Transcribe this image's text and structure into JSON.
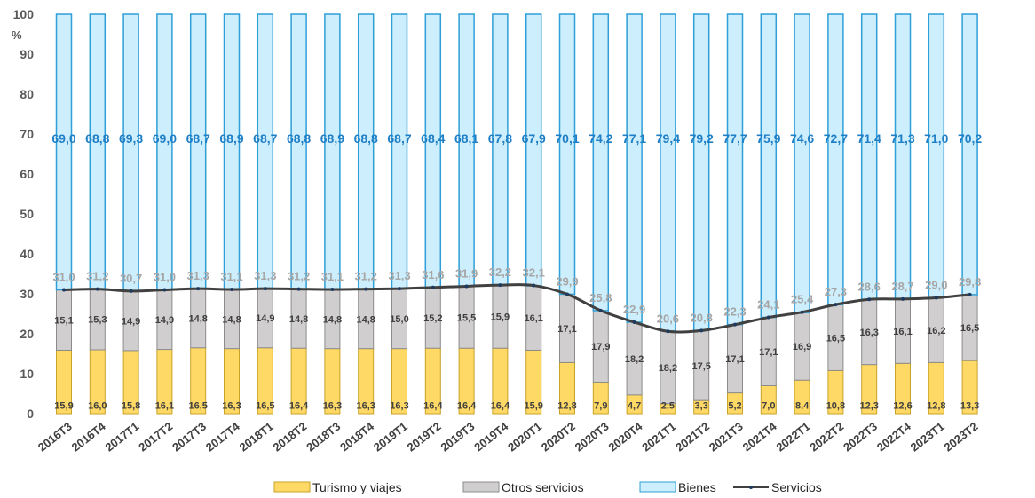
{
  "chart_data": {
    "type": "bar",
    "stacked": true,
    "unit_label": "%",
    "ylim": [
      0,
      100
    ],
    "yticks": [
      0,
      10,
      20,
      30,
      40,
      50,
      60,
      70,
      80,
      90,
      100
    ],
    "categories": [
      "2016T3",
      "2016T4",
      "2017T1",
      "2017T2",
      "2017T3",
      "2017T4",
      "2018T1",
      "2018T2",
      "2018T3",
      "2018T4",
      "2019T1",
      "2019T2",
      "2019T3",
      "2019T4",
      "2020T1",
      "2020T2",
      "2020T3",
      "2020T4",
      "2021T1",
      "2021T2",
      "2021T3",
      "2021T4",
      "2022T1",
      "2022T2",
      "2022T3",
      "2022T4",
      "2023T1",
      "2023T2"
    ],
    "series": [
      {
        "name": "Turismo y viajes",
        "kind": "bar",
        "color": "#ffd966",
        "values": [
          15.9,
          16.0,
          15.8,
          16.1,
          16.5,
          16.3,
          16.5,
          16.4,
          16.3,
          16.3,
          16.3,
          16.4,
          16.4,
          16.4,
          15.9,
          12.8,
          7.9,
          4.7,
          2.5,
          3.3,
          5.2,
          7.0,
          8.4,
          10.8,
          12.3,
          12.6,
          12.8,
          13.3
        ]
      },
      {
        "name": "Otros servicios",
        "kind": "bar",
        "color": "#d0cece",
        "values": [
          15.1,
          15.3,
          14.9,
          14.9,
          14.8,
          14.8,
          14.9,
          14.8,
          14.8,
          14.8,
          15.0,
          15.2,
          15.5,
          15.9,
          16.1,
          17.1,
          17.9,
          18.2,
          18.2,
          17.5,
          17.1,
          17.1,
          16.9,
          16.5,
          16.3,
          16.1,
          16.2,
          16.5
        ]
      },
      {
        "name": "Bienes",
        "kind": "bar",
        "color": "#cdeefc",
        "values": [
          69.0,
          68.8,
          69.3,
          69.0,
          68.7,
          68.9,
          68.7,
          68.8,
          68.9,
          68.8,
          68.7,
          68.4,
          68.1,
          67.8,
          67.9,
          70.1,
          74.2,
          77.1,
          79.4,
          79.2,
          77.7,
          75.9,
          74.6,
          72.7,
          71.4,
          71.3,
          71.0,
          70.2
        ]
      },
      {
        "name": "Servicios",
        "kind": "line",
        "color": "#404040",
        "values": [
          31.0,
          31.2,
          30.7,
          31.0,
          31.3,
          31.1,
          31.3,
          31.2,
          31.1,
          31.2,
          31.3,
          31.6,
          31.9,
          32.2,
          32.1,
          29.9,
          25.8,
          22.9,
          20.6,
          20.8,
          22.3,
          24.1,
          25.4,
          27.3,
          28.6,
          28.7,
          29.0,
          29.8
        ]
      }
    ],
    "legend_position": "bottom"
  },
  "colors": {
    "bienes_border": "#2e9fd8",
    "otros_border": "#8c8c8c",
    "turismo_border": "#c9a227",
    "bienes_label": "#1f7fc6"
  }
}
